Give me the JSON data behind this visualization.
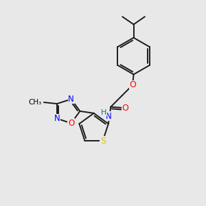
{
  "background_color": "#e8e8e8",
  "bond_color": "#1a1a1a",
  "atom_colors": {
    "N": "#0000ff",
    "O": "#ff0000",
    "S": "#cccc00",
    "H": "#008080",
    "C": "#000000"
  },
  "figsize": [
    3.0,
    3.0
  ],
  "dpi": 100
}
